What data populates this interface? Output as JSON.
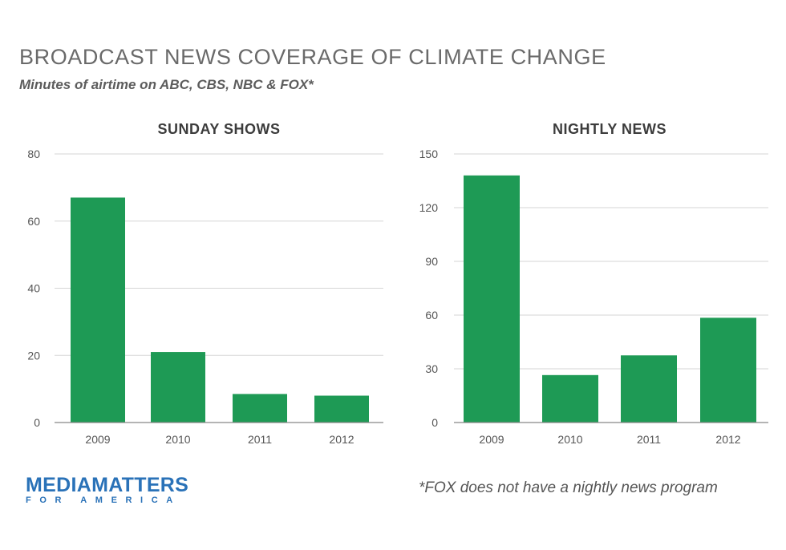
{
  "header": {
    "title": "BROADCAST NEWS COVERAGE OF CLIMATE CHANGE",
    "subtitle": "Minutes of airtime on ABC, CBS, NBC & FOX*"
  },
  "chart_data": [
    {
      "type": "bar",
      "title": "SUNDAY SHOWS",
      "categories": [
        "2009",
        "2010",
        "2011",
        "2012"
      ],
      "values": [
        67,
        21,
        8.5,
        8
      ],
      "ylim": [
        0,
        80
      ],
      "yticks": [
        0,
        20,
        40,
        60,
        80
      ],
      "grid": true,
      "bar_color": "#1e9a55"
    },
    {
      "type": "bar",
      "title": "NIGHTLY NEWS",
      "categories": [
        "2009",
        "2010",
        "2011",
        "2012"
      ],
      "values": [
        138,
        26.5,
        37.5,
        58.5
      ],
      "ylim": [
        0,
        150
      ],
      "yticks": [
        0,
        30,
        60,
        90,
        120,
        150
      ],
      "grid": true,
      "bar_color": "#1e9a55"
    }
  ],
  "logo": {
    "line1_bold": "MEDIA",
    "line1_rest": "MATTERS",
    "line2": "FOR AMERICA"
  },
  "footnote": "*FOX does not have a nightly news program"
}
